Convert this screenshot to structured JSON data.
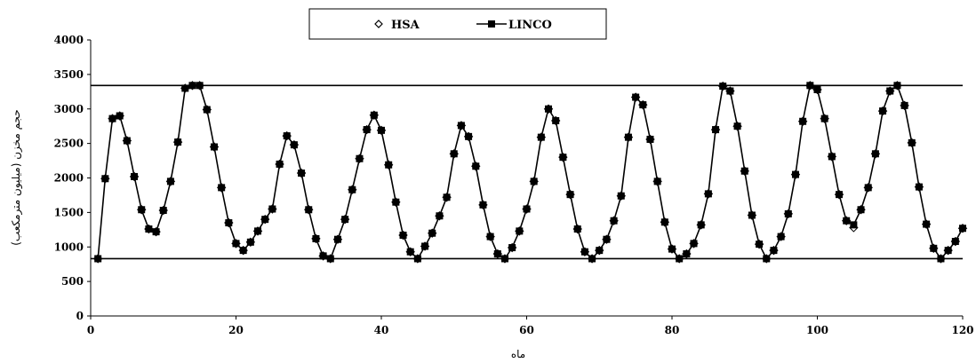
{
  "chart_data": {
    "type": "line",
    "xlabel": "ماه",
    "ylabel": "حجم مخزن (میلیون مترمکعب)",
    "xlim": [
      0,
      120
    ],
    "ylim": [
      0,
      4000
    ],
    "x_ticks": [
      "0",
      "20",
      "40",
      "60",
      "80",
      "100",
      "120"
    ],
    "y_ticks": [
      "0",
      "500",
      "1000",
      "1500",
      "2000",
      "2500",
      "3000",
      "3500",
      "4000"
    ],
    "legend_placement": "top-center",
    "grid": false,
    "horizontal_lines": [
      {
        "y": 3340
      },
      {
        "y": 830
      }
    ],
    "series": [
      {
        "name": "HSA",
        "marker": "diamond-open",
        "color": "#000000",
        "x": [
          1,
          2,
          3,
          4,
          5,
          6,
          7,
          8,
          9,
          10,
          11,
          12,
          13,
          14,
          15,
          16,
          17,
          18,
          19,
          20,
          21,
          22,
          23,
          24,
          25,
          26,
          27,
          28,
          29,
          30,
          31,
          32,
          33,
          34,
          35,
          36,
          37,
          38,
          39,
          40,
          41,
          42,
          43,
          44,
          45,
          46,
          47,
          48,
          49,
          50,
          51,
          52,
          53,
          54,
          55,
          56,
          57,
          58,
          59,
          60,
          61,
          62,
          63,
          64,
          65,
          66,
          67,
          68,
          69,
          70,
          71,
          72,
          73,
          74,
          75,
          76,
          77,
          78,
          79,
          80,
          81,
          82,
          83,
          84,
          85,
          86,
          87,
          88,
          89,
          90,
          91,
          92,
          93,
          94,
          95,
          96,
          97,
          98,
          99,
          100,
          101,
          102,
          103,
          104,
          105,
          106,
          107,
          108,
          109,
          110,
          111,
          112,
          113,
          114,
          115,
          116,
          117,
          118,
          119,
          120
        ],
        "values": [
          830,
          1990,
          2860,
          2900,
          2540,
          2020,
          1540,
          1260,
          1220,
          1530,
          1950,
          2520,
          3300,
          3340,
          3340,
          2990,
          2450,
          1860,
          1350,
          1050,
          950,
          1070,
          1230,
          1400,
          1550,
          2200,
          2610,
          2480,
          2070,
          1540,
          1120,
          870,
          830,
          1110,
          1400,
          1830,
          2280,
          2700,
          2910,
          2690,
          2190,
          1650,
          1170,
          930,
          830,
          1010,
          1200,
          1450,
          1720,
          2350,
          2760,
          2600,
          2170,
          1610,
          1150,
          900,
          830,
          990,
          1230,
          1550,
          1950,
          2590,
          3000,
          2830,
          2300,
          1760,
          1260,
          930,
          830,
          950,
          1110,
          1380,
          1740,
          2590,
          3170,
          3060,
          2560,
          1950,
          1360,
          970,
          830,
          900,
          1050,
          1320,
          1770,
          2700,
          3330,
          3260,
          2750,
          2100,
          1460,
          1040,
          830,
          950,
          1150,
          1480,
          2050,
          2820,
          3340,
          3280,
          2860,
          2310,
          1760,
          1380,
          1280,
          1540,
          1860,
          2350,
          2970,
          3260,
          3340,
          3050,
          2510,
          1870,
          1330,
          980,
          830,
          950,
          1080,
          1270
        ]
      },
      {
        "name": "LINCO",
        "marker": "square-filled",
        "color": "#000000",
        "x": [
          1,
          2,
          3,
          4,
          5,
          6,
          7,
          8,
          9,
          10,
          11,
          12,
          13,
          14,
          15,
          16,
          17,
          18,
          19,
          20,
          21,
          22,
          23,
          24,
          25,
          26,
          27,
          28,
          29,
          30,
          31,
          32,
          33,
          34,
          35,
          36,
          37,
          38,
          39,
          40,
          41,
          42,
          43,
          44,
          45,
          46,
          47,
          48,
          49,
          50,
          51,
          52,
          53,
          54,
          55,
          56,
          57,
          58,
          59,
          60,
          61,
          62,
          63,
          64,
          65,
          66,
          67,
          68,
          69,
          70,
          71,
          72,
          73,
          74,
          75,
          76,
          77,
          78,
          79,
          80,
          81,
          82,
          83,
          84,
          85,
          86,
          87,
          88,
          89,
          90,
          91,
          92,
          93,
          94,
          95,
          96,
          97,
          98,
          99,
          100,
          101,
          102,
          103,
          104,
          105,
          106,
          107,
          108,
          109,
          110,
          111,
          112,
          113,
          114,
          115,
          116,
          117,
          118,
          119,
          120
        ],
        "values": [
          830,
          1990,
          2860,
          2900,
          2540,
          2020,
          1540,
          1260,
          1220,
          1530,
          1950,
          2520,
          3300,
          3340,
          3340,
          2990,
          2450,
          1860,
          1350,
          1050,
          950,
          1070,
          1230,
          1400,
          1550,
          2200,
          2610,
          2480,
          2070,
          1540,
          1120,
          870,
          830,
          1110,
          1400,
          1830,
          2280,
          2700,
          2910,
          2690,
          2190,
          1650,
          1170,
          930,
          830,
          1010,
          1200,
          1450,
          1720,
          2350,
          2760,
          2600,
          2170,
          1610,
          1150,
          900,
          830,
          990,
          1230,
          1550,
          1950,
          2590,
          3000,
          2830,
          2300,
          1760,
          1260,
          930,
          830,
          950,
          1110,
          1380,
          1740,
          2590,
          3170,
          3060,
          2560,
          1950,
          1360,
          970,
          830,
          900,
          1050,
          1320,
          1770,
          2700,
          3330,
          3260,
          2750,
          2100,
          1460,
          1040,
          830,
          950,
          1150,
          1480,
          2050,
          2820,
          3340,
          3280,
          2860,
          2310,
          1760,
          1380,
          1320,
          1540,
          1860,
          2350,
          2970,
          3260,
          3340,
          3050,
          2510,
          1870,
          1330,
          980,
          830,
          950,
          1080,
          1270
        ]
      }
    ]
  }
}
